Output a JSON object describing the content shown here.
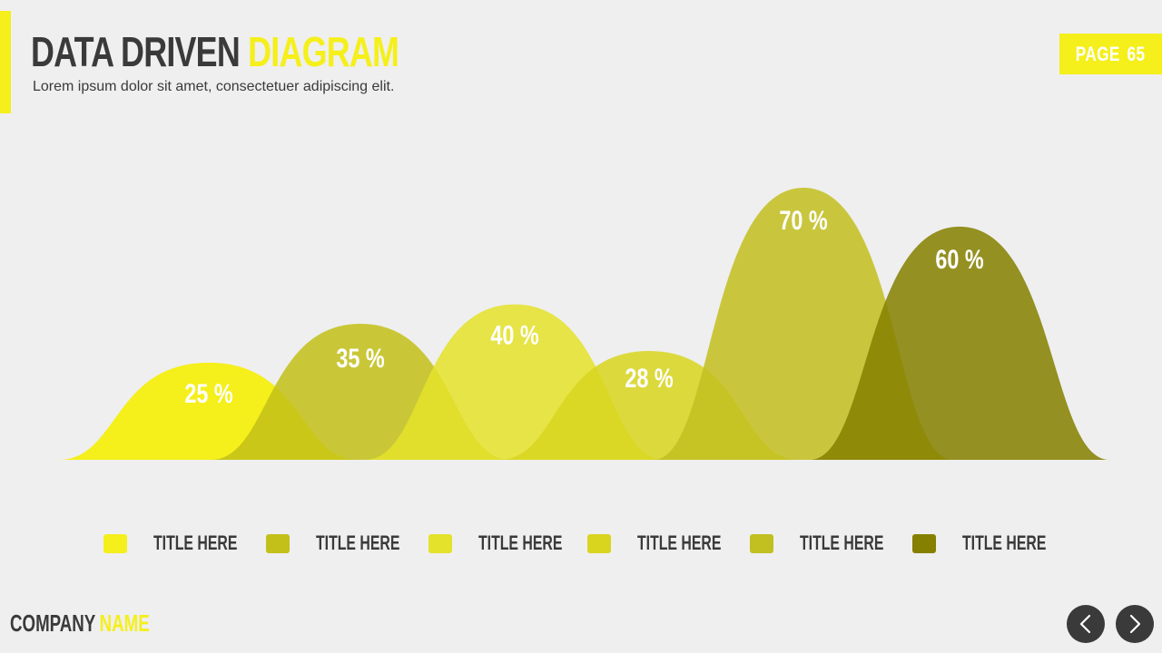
{
  "header": {
    "title_part1": "DATA DRIVEN",
    "title_part2": "DIAGRAM",
    "subtitle": "Lorem ipsum dolor sit amet, consectetuer adipiscing elit.",
    "page_label": "PAGE",
    "page_number": "65"
  },
  "footer": {
    "company_part1": "COMPANY",
    "company_part2": "NAME",
    "prev_icon": "chevron-left-icon",
    "next_icon": "chevron-right-icon"
  },
  "colors": {
    "accent": "#f5ef1b",
    "dark": "#3a3a3a",
    "background": "#efefef"
  },
  "chart_data": {
    "type": "area",
    "categories": [
      "TITLE HERE",
      "TITLE HERE",
      "TITLE HERE",
      "TITLE HERE",
      "TITLE HERE",
      "TITLE HERE"
    ],
    "values": [
      25,
      35,
      40,
      28,
      70,
      60
    ],
    "value_labels": [
      "25 %",
      "35 %",
      "40 %",
      "28 %",
      "70 %",
      "60 %"
    ],
    "colors": [
      "#f5ef1b",
      "#c3c01a",
      "#e4e22a",
      "#d9d51f",
      "#c2bf21",
      "#858000"
    ],
    "legend_position": "bottom",
    "grid": false
  }
}
